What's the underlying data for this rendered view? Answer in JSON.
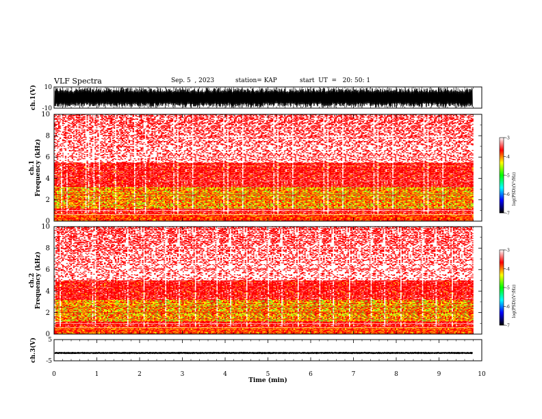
{
  "header": {
    "title": "VLF Spectra",
    "date": "Sep. 5  , 2023",
    "station": "station= KAP",
    "start": "start  UT  =   20: 50: 1"
  },
  "colors": {
    "spectrogram_background": "#ffffff",
    "low_power": "#ff0000",
    "mid_power": "#ffff00",
    "high_power": "#00ff00",
    "trace": "#000000",
    "colorbar": [
      "#ffffff",
      "#ff0000",
      "#ffff00",
      "#00ff00",
      "#00ffff",
      "#0000ff",
      "#000000"
    ]
  },
  "chart_data": [
    {
      "type": "line",
      "name": "ch1-waveform",
      "ylabel": "ch.1(V)",
      "ylim": [
        -10,
        10
      ],
      "yticklabels": [
        "10",
        "-10"
      ],
      "description_series": {
        "x_min": [
          0,
          9.8
        ],
        "center": 0,
        "typical_amplitude": 9.5
      }
    },
    {
      "type": "heatmap",
      "name": "ch1-spectrogram",
      "ylabel": "ch.1\nFrequency  (kHz)",
      "ylim": [
        0,
        10
      ],
      "yticks": [
        0,
        2,
        4,
        6,
        8,
        10
      ],
      "xlim": [
        0,
        9.8
      ],
      "bands_khz": [
        {
          "from": 0.0,
          "to": 0.7,
          "level": "red-yellow"
        },
        {
          "from": 0.7,
          "to": 1.2,
          "level": "red"
        },
        {
          "from": 1.2,
          "to": 3.2,
          "level": "yellow-green"
        },
        {
          "from": 3.2,
          "to": 5.5,
          "level": "red"
        },
        {
          "from": 5.5,
          "to": 10.0,
          "level": "sparse-red"
        }
      ],
      "colorbar": {
        "label": "log(PSD)(V²/Hz)",
        "ticks": [
          "-3",
          "-4",
          "-5",
          "-6",
          "-7"
        ],
        "range": [
          -7,
          -3
        ]
      }
    },
    {
      "type": "heatmap",
      "name": "ch2-spectrogram",
      "ylabel": "ch.2\nFrequency  (kHz)",
      "ylim": [
        0,
        10
      ],
      "yticks": [
        0,
        2,
        4,
        6,
        8,
        10
      ],
      "xlim": [
        0,
        9.8
      ],
      "bands_khz": [
        {
          "from": 0.0,
          "to": 0.7,
          "level": "red-yellow"
        },
        {
          "from": 0.7,
          "to": 1.2,
          "level": "red"
        },
        {
          "from": 1.2,
          "to": 3.2,
          "level": "yellow-green"
        },
        {
          "from": 3.2,
          "to": 5.0,
          "level": "red"
        },
        {
          "from": 5.0,
          "to": 10.0,
          "level": "sparse-red"
        }
      ],
      "colorbar": {
        "label": "log(PSD)(V²/Hz)",
        "ticks": [
          "-3",
          "-4",
          "-5",
          "-6",
          "-7"
        ],
        "range": [
          -7,
          -3
        ]
      }
    },
    {
      "type": "line",
      "name": "ch3-waveform",
      "ylabel": "ch.3(V)",
      "ylim": [
        -5,
        5
      ],
      "yticklabels": [
        "5",
        "-5"
      ],
      "description_series": {
        "x_min": [
          0,
          9.8
        ],
        "center": -1.3,
        "typical_amplitude": 0.5
      }
    }
  ],
  "xaxis": {
    "label": "Time  (min)",
    "ticks": [
      0,
      1,
      2,
      3,
      4,
      5,
      6,
      7,
      8,
      9,
      10
    ],
    "xlim": [
      0,
      10
    ],
    "data_end": 9.8
  }
}
